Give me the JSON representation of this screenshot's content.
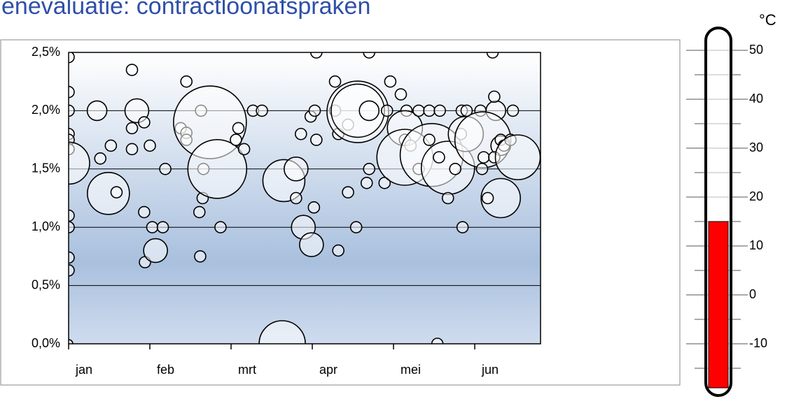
{
  "title": "enevaluatie: contractloonafspraken",
  "chart_data": [
    {
      "type": "bubble",
      "xlim": [
        0,
        5.81
      ],
      "ylim": [
        0,
        2.5
      ],
      "xticks": [
        {
          "value": 0,
          "label": "jan"
        },
        {
          "value": 1,
          "label": "feb"
        },
        {
          "value": 2,
          "label": "mrt"
        },
        {
          "value": 3,
          "label": "apr"
        },
        {
          "value": 4,
          "label": "mei"
        },
        {
          "value": 5,
          "label": "jun"
        }
      ],
      "yticks": [
        {
          "value": 0,
          "label": "0,0%"
        },
        {
          "value": 0.5,
          "label": "0,5%"
        },
        {
          "value": 1,
          "label": "1,0%"
        },
        {
          "value": 1.5,
          "label": "1,5%"
        },
        {
          "value": 2,
          "label": "2,0%"
        },
        {
          "value": 2.5,
          "label": "2,5%"
        }
      ],
      "grid": true,
      "series": [
        {
          "color": "#ffffff",
          "x": [
            0,
            0,
            0,
            0,
            0,
            0,
            0,
            0,
            0,
            0,
            0,
            0,
            0.35,
            0.39,
            0.49,
            0.59,
            0.52,
            0.78,
            0.84,
            0.78,
            0.93,
            0.78,
            1.0,
            0.93,
            1.03,
            1.16,
            0.94,
            1.07,
            1.19,
            1.45,
            1.63,
            1.38,
            1.45,
            1.45,
            1.74,
            1.66,
            1.65,
            1.61,
            1.62,
            1.83,
            1.87,
            2.09,
            2.06,
            2.16,
            2.27,
            2.38,
            2.63,
            2.65,
            2.8,
            2.8,
            2.86,
            2.89,
            2.99,
            3.02,
            3.05,
            2.98,
            3.03,
            3.05,
            3.32,
            3.28,
            3.32,
            3.28,
            3.44,
            3.44,
            3.56,
            3.56,
            3.54,
            3.7,
            3.7,
            3.67,
            3.7,
            3.89,
            3.92,
            3.96,
            4.09,
            4.16,
            4.14,
            4.14,
            4.21,
            4.14,
            4.31,
            4.47,
            4.67,
            4.31,
            4.44,
            4.57,
            4.44,
            4.56,
            4.67,
            4.83,
            4.84,
            4.9,
            4.76,
            4.85,
            4.89,
            4.54,
            5.07,
            5.26,
            5.24,
            5.1,
            5.32,
            5.09,
            5.11,
            5.32,
            5.16,
            5.24,
            5.32,
            5.36,
            5.44,
            5.53,
            5.47,
            5.22
          ],
          "values": [
            2.46,
            2.16,
            2.0,
            1.8,
            1.75,
            1.67,
            1.55,
            1.1,
            1.0,
            0.74,
            0.63,
            0,
            2.0,
            1.59,
            1.29,
            1.3,
            1.7,
            2.35,
            2.0,
            1.85,
            1.9,
            1.67,
            1.7,
            1.13,
            1.0,
            1.0,
            0.7,
            0.8,
            1.5,
            2.25,
            2.0,
            1.85,
            1.81,
            1.75,
            1.9,
            1.5,
            1.25,
            1.13,
            0.75,
            1.5,
            1.0,
            1.85,
            1.75,
            1.67,
            2.0,
            2.0,
            0,
            1.4,
            1.5,
            1.25,
            1.8,
            1.0,
            0.85,
            1.17,
            1.75,
            1.95,
            2.0,
            2.5,
            0.8,
            2.25,
            1.8,
            2.0,
            1.3,
            1.88,
            1.99,
            2.0,
            1.0,
            2.0,
            1.5,
            1.38,
            2.5,
            1.38,
            2.0,
            2.25,
            2.14,
            2.0,
            1.85,
            1.75,
            1.7,
            1.6,
            1.5,
            1.62,
            1.51,
            2.0,
            2.0,
            2.0,
            1.75,
            1.6,
            1.25,
            1.8,
            2.0,
            2.0,
            1.5,
            1.0,
            1.8,
            0,
            2.0,
            2.0,
            2.12,
            1.75,
            1.7,
            1.5,
            1.6,
            1.25,
            1.25,
            1.6,
            1.75,
            1.7,
            1.75,
            1.6,
            2.0,
            2.5
          ],
          "sizes": [
            64,
            64,
            64,
            64,
            64,
            64,
            900,
            64,
            64,
            64,
            64,
            36,
            196,
            64,
            900,
            64,
            64,
            64,
            289,
            64,
            64,
            64,
            64,
            64,
            64,
            64,
            64,
            289,
            64,
            64,
            64,
            64,
            64,
            64,
            2704,
            64,
            64,
            64,
            64,
            1764,
            64,
            64,
            64,
            64,
            64,
            64,
            1089,
            900,
            289,
            64,
            64,
            289,
            289,
            64,
            64,
            64,
            64,
            64,
            64,
            64,
            64,
            64,
            64,
            64,
            1936,
            1444,
            64,
            196,
            64,
            64,
            64,
            64,
            64,
            64,
            64,
            64,
            625,
            64,
            64,
            1600,
            64,
            2025,
            1444,
            64,
            64,
            64,
            64,
            64,
            64,
            64,
            64,
            64,
            64,
            64,
            625,
            64,
            64,
            196,
            64,
            1600,
            196,
            64,
            64,
            784,
            64,
            64,
            64,
            64,
            64,
            1024,
            64,
            64
          ]
        }
      ]
    },
    {
      "type": "thermometer",
      "unit": "°C",
      "value": 15,
      "color": "#ff0000",
      "ylim": [
        -19,
        50
      ],
      "yticks": [
        -10,
        0,
        10,
        20,
        30,
        40,
        50
      ],
      "minor_yticks": [
        -15,
        -5,
        5,
        15,
        25,
        35,
        45
      ]
    }
  ]
}
